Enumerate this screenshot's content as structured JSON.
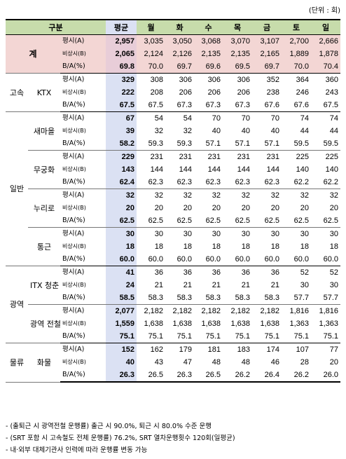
{
  "unit_label": "(단위 : 회)",
  "header": {
    "category": "구분",
    "columns": [
      "평균",
      "월",
      "화",
      "수",
      "목",
      "금",
      "토",
      "일"
    ]
  },
  "total": {
    "label": "계",
    "rows": [
      {
        "label": "평시(A)",
        "values": [
          "2,957",
          "3,035",
          "3,050",
          "3,068",
          "3,070",
          "3,107",
          "2,700",
          "2,666"
        ]
      },
      {
        "label": "비상시(B)",
        "values": [
          "2,065",
          "2,124",
          "2,126",
          "2,135",
          "2,135",
          "2,165",
          "1,889",
          "1,878"
        ]
      },
      {
        "label": "B/A(%)",
        "values": [
          "69.8",
          "70.0",
          "69.7",
          "69.6",
          "69.5",
          "69.7",
          "70.0",
          "70.4"
        ]
      }
    ]
  },
  "groups": [
    {
      "label": "고속",
      "subs": [
        {
          "label": "KTX",
          "rows": [
            {
              "label": "평시(A)",
              "values": [
                "329",
                "308",
                "306",
                "306",
                "306",
                "352",
                "364",
                "360"
              ]
            },
            {
              "label": "비상시(B)",
              "values": [
                "222",
                "208",
                "206",
                "206",
                "206",
                "238",
                "246",
                "243"
              ]
            },
            {
              "label": "B/A(%)",
              "values": [
                "67.5",
                "67.5",
                "67.3",
                "67.3",
                "67.3",
                "67.6",
                "67.6",
                "67.5"
              ]
            }
          ]
        }
      ]
    },
    {
      "label": "일반",
      "subs": [
        {
          "label": "새마을",
          "rows": [
            {
              "label": "평시(A)",
              "values": [
                "67",
                "54",
                "54",
                "70",
                "70",
                "70",
                "74",
                "74"
              ]
            },
            {
              "label": "비상시(B)",
              "values": [
                "39",
                "32",
                "32",
                "40",
                "40",
                "40",
                "44",
                "44"
              ]
            },
            {
              "label": "B/A(%)",
              "values": [
                "58.2",
                "59.3",
                "59.3",
                "57.1",
                "57.1",
                "57.1",
                "59.5",
                "59.5"
              ]
            }
          ]
        },
        {
          "label": "무궁화",
          "rows": [
            {
              "label": "평시(A)",
              "values": [
                "229",
                "231",
                "231",
                "231",
                "231",
                "231",
                "225",
                "225"
              ]
            },
            {
              "label": "비상시(B)",
              "values": [
                "143",
                "144",
                "144",
                "144",
                "144",
                "144",
                "140",
                "140"
              ]
            },
            {
              "label": "B/A(%)",
              "values": [
                "62.4",
                "62.3",
                "62.3",
                "62.3",
                "62.3",
                "62.3",
                "62.2",
                "62.2"
              ]
            }
          ]
        },
        {
          "label": "누리로",
          "rows": [
            {
              "label": "평시(A)",
              "values": [
                "32",
                "32",
                "32",
                "32",
                "32",
                "32",
                "32",
                "32"
              ]
            },
            {
              "label": "비상시(B)",
              "values": [
                "20",
                "20",
                "20",
                "20",
                "20",
                "20",
                "20",
                "20"
              ]
            },
            {
              "label": "B/A(%)",
              "values": [
                "62.5",
                "62.5",
                "62.5",
                "62.5",
                "62.5",
                "62.5",
                "62.5",
                "62.5"
              ]
            }
          ]
        },
        {
          "label": "통근",
          "rows": [
            {
              "label": "평시(A)",
              "values": [
                "30",
                "30",
                "30",
                "30",
                "30",
                "30",
                "30",
                "30"
              ]
            },
            {
              "label": "비상시(B)",
              "values": [
                "18",
                "18",
                "18",
                "18",
                "18",
                "18",
                "18",
                "18"
              ]
            },
            {
              "label": "B/A(%)",
              "values": [
                "60.0",
                "60.0",
                "60.0",
                "60.0",
                "60.0",
                "60.0",
                "60.0",
                "60.0"
              ]
            }
          ]
        }
      ]
    },
    {
      "label": "광역",
      "subs": [
        {
          "label": "ITX 청춘",
          "rows": [
            {
              "label": "평시(A)",
              "values": [
                "41",
                "36",
                "36",
                "36",
                "36",
                "36",
                "52",
                "52"
              ]
            },
            {
              "label": "비상시(B)",
              "values": [
                "24",
                "21",
                "21",
                "21",
                "21",
                "21",
                "30",
                "30"
              ]
            },
            {
              "label": "B/A(%)",
              "values": [
                "58.5",
                "58.3",
                "58.3",
                "58.3",
                "58.3",
                "58.3",
                "57.7",
                "57.7"
              ]
            }
          ]
        },
        {
          "label": "광역 전철",
          "rows": [
            {
              "label": "평시(A)",
              "values": [
                "2,077",
                "2,182",
                "2,182",
                "2,182",
                "2,182",
                "2,182",
                "1,816",
                "1,816"
              ]
            },
            {
              "label": "비상시(B)",
              "values": [
                "1,559",
                "1,638",
                "1,638",
                "1,638",
                "1,638",
                "1,638",
                "1,363",
                "1,363"
              ]
            },
            {
              "label": "B/A(%)",
              "values": [
                "75.1",
                "75.1",
                "75.1",
                "75.1",
                "75.1",
                "75.1",
                "75.1",
                "75.1"
              ]
            }
          ]
        }
      ]
    },
    {
      "label": "물류",
      "subs": [
        {
          "label": "화물",
          "rows": [
            {
              "label": "평시(A)",
              "values": [
                "152",
                "162",
                "179",
                "181",
                "183",
                "174",
                "107",
                "77"
              ]
            },
            {
              "label": "비상시(B)",
              "values": [
                "40",
                "43",
                "47",
                "48",
                "48",
                "46",
                "28",
                "20"
              ]
            },
            {
              "label": "B/A(%)",
              "values": [
                "26.3",
                "26.5",
                "26.3",
                "26.5",
                "26.2",
                "26.4",
                "26.2",
                "26.0"
              ]
            }
          ]
        }
      ]
    }
  ],
  "notes": [
    "- (출퇴근 시 광역전철 운행률) 출근 시 90.0%, 퇴근 시 80.0% 수준 운행",
    "- (SRT 포함 시 고속철도 전체 운행률) 76.2%, SRT 열차운행횟수 120회(일평균)",
    "- 내·외부 대체기관사 인력에 따라 운행률 변동 가능"
  ]
}
